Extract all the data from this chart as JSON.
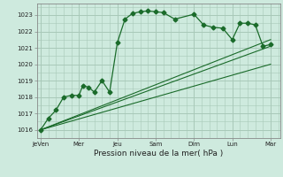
{
  "xlabel": "Pression niveau de la mer( hPa )",
  "bg_color": "#ceeade",
  "grid_color": "#a8c8b8",
  "line_color": "#1a6b2a",
  "ylim": [
    1015.5,
    1023.7
  ],
  "xlim": [
    -0.2,
    12.5
  ],
  "xtick_labels": [
    "JeVen",
    "Mer",
    "Jeu",
    "Sam",
    "Dim",
    "Lun",
    "Mar"
  ],
  "xtick_positions": [
    0,
    2,
    4,
    6,
    8,
    10,
    12
  ],
  "ytick_positions": [
    1016,
    1017,
    1018,
    1019,
    1020,
    1021,
    1022,
    1023
  ],
  "lines": [
    {
      "x": [
        0,
        0.4,
        0.8,
        1.2,
        1.6,
        2.0,
        2.2,
        2.5,
        2.8,
        3.2,
        3.6,
        4.0,
        4.4,
        4.8,
        5.2,
        5.6,
        6.0,
        6.4,
        7.0,
        8.0,
        8.5,
        9.0,
        9.5,
        10.0,
        10.4,
        10.8,
        11.2,
        11.6,
        12.0
      ],
      "y": [
        1016.0,
        1016.7,
        1017.2,
        1018.0,
        1018.1,
        1018.1,
        1018.7,
        1018.6,
        1018.3,
        1019.0,
        1018.3,
        1021.3,
        1022.75,
        1023.1,
        1023.2,
        1023.25,
        1023.2,
        1023.15,
        1022.75,
        1023.05,
        1022.4,
        1022.25,
        1022.2,
        1021.5,
        1022.5,
        1022.5,
        1022.4,
        1021.1,
        1021.2
      ],
      "marker": "D",
      "markersize": 2.5,
      "linewidth": 0.9
    },
    {
      "x": [
        0,
        12.0
      ],
      "y": [
        1016.0,
        1021.1
      ],
      "marker": null,
      "markersize": 0,
      "linewidth": 0.8
    },
    {
      "x": [
        0,
        12.0
      ],
      "y": [
        1016.0,
        1021.5
      ],
      "marker": null,
      "markersize": 0,
      "linewidth": 0.8
    },
    {
      "x": [
        0,
        12.0
      ],
      "y": [
        1016.0,
        1020.0
      ],
      "marker": null,
      "markersize": 0,
      "linewidth": 0.8
    }
  ]
}
